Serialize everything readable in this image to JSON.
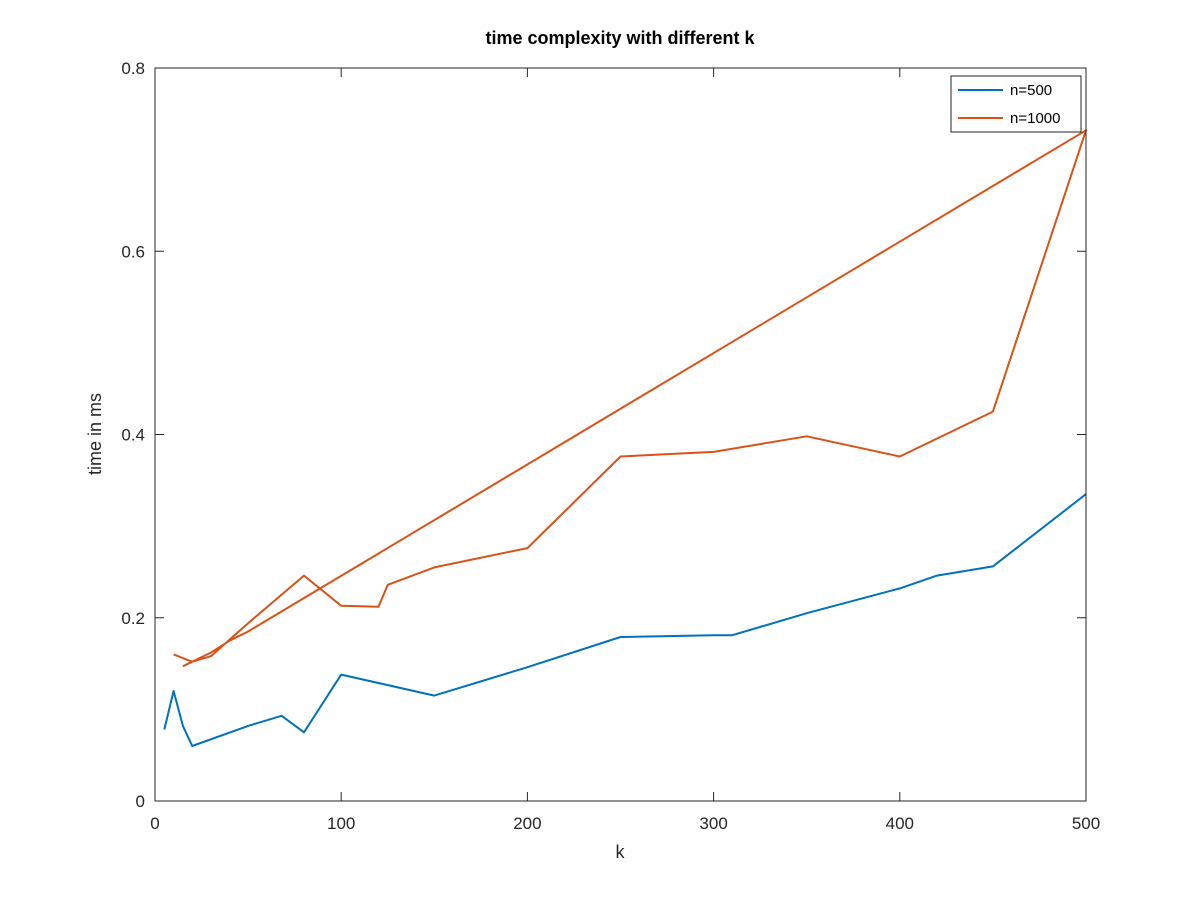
{
  "chart_data": {
    "type": "line",
    "title": "time complexity with different k",
    "xlabel": "k",
    "ylabel": "time in ms",
    "xlim": [
      0,
      500
    ],
    "ylim": [
      0,
      0.8
    ],
    "xticks": [
      0,
      100,
      200,
      300,
      400,
      500
    ],
    "xtick_labels": [
      "0",
      "100",
      "200",
      "300",
      "400",
      "500"
    ],
    "yticks": [
      0,
      0.2,
      0.4,
      0.6,
      0.8
    ],
    "ytick_labels": [
      "0",
      "0.2",
      "0.4",
      "0.6",
      "0.8"
    ],
    "grid": false,
    "legend_position": "top-right",
    "series": [
      {
        "name": "n=500",
        "color": "#0072BD",
        "x": [
          5,
          10,
          15,
          20,
          50,
          68,
          80,
          100,
          150,
          200,
          250,
          300,
          310,
          350,
          400,
          420,
          450,
          500
        ],
        "y": [
          0.078,
          0.12,
          0.082,
          0.06,
          0.082,
          0.093,
          0.075,
          0.138,
          0.115,
          0.146,
          0.179,
          0.181,
          0.181,
          0.205,
          0.232,
          0.246,
          0.256,
          0.335
        ]
      },
      {
        "name": "n=1000",
        "color": "#D95319",
        "x": [
          10,
          20,
          30,
          50,
          80,
          100,
          120,
          125,
          150,
          200,
          250,
          300,
          350,
          400,
          450,
          500,
          50,
          40,
          30,
          20,
          15
        ],
        "y": [
          0.16,
          0.152,
          0.158,
          0.194,
          0.246,
          0.213,
          0.212,
          0.236,
          0.255,
          0.276,
          0.376,
          0.381,
          0.398,
          0.376,
          0.425,
          0.732,
          0.185,
          0.175,
          0.162,
          0.152,
          0.147
        ]
      }
    ]
  }
}
